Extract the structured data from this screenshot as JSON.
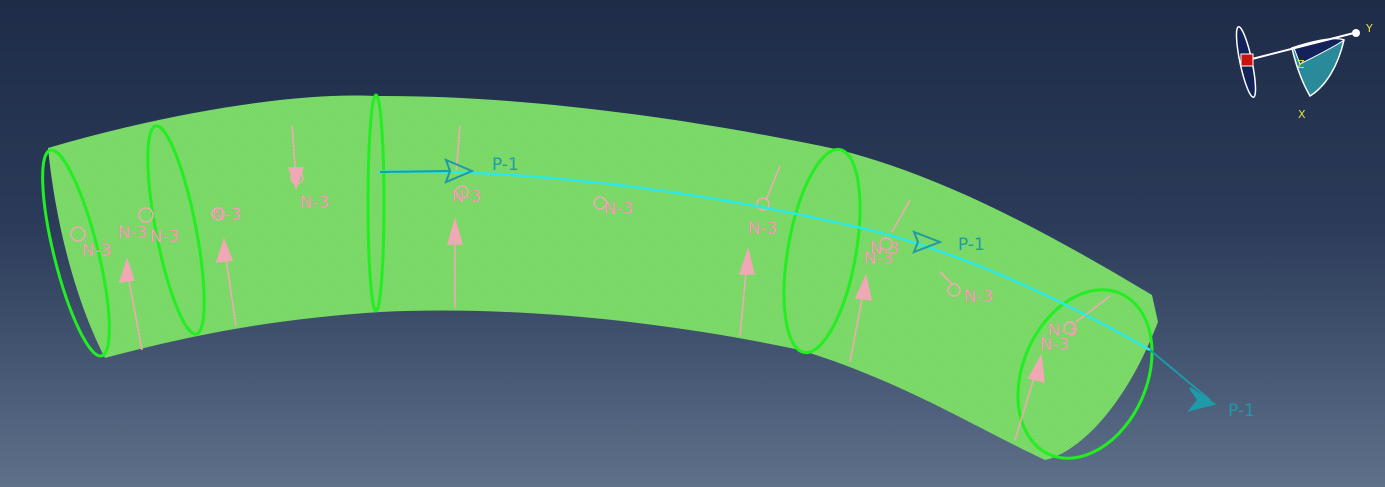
{
  "viewport": {
    "background_top": "#1e2c48",
    "background_bottom": "#5f7189"
  },
  "model": {
    "surface_color": "#7ddc6a",
    "edge_color": "#22ee22",
    "load_color": "#f0a8b4",
    "path_color": "#2ee8e8"
  },
  "annotations": {
    "node_labels": [
      "N-3",
      "N-3",
      "N-3",
      "N-3",
      "N-3",
      "N-3",
      "N-3",
      "N-3",
      "N-3",
      "N-3",
      "N-3",
      "N-3",
      "N-3"
    ],
    "path_labels": [
      "P-1",
      "P-1",
      "P-1"
    ]
  },
  "triad": {
    "labels": {
      "y": "Y",
      "z": "Z",
      "x": "X"
    },
    "origin_color": "#cc1111",
    "axis_color": "#e8e040"
  }
}
